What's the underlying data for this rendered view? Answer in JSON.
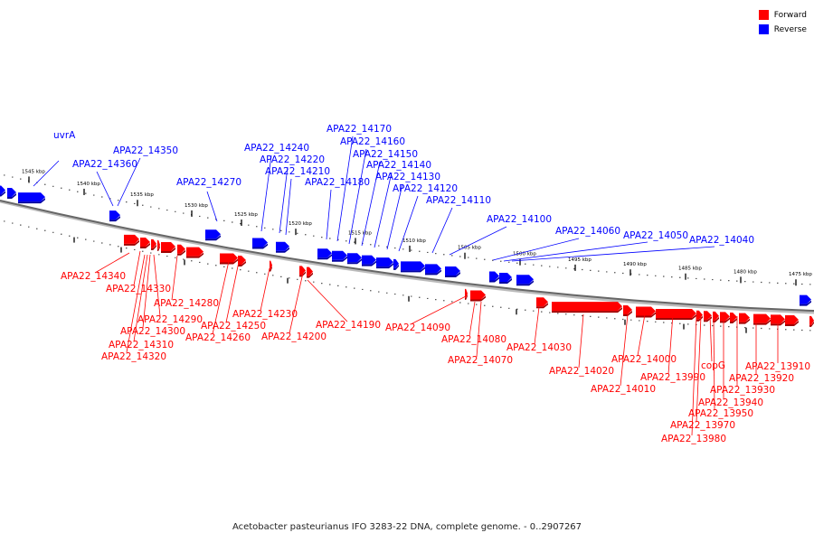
{
  "legend": {
    "forward_label": "Forward",
    "reverse_label": "Reverse",
    "forward_color": "#ff0000",
    "reverse_color": "#0000ff"
  },
  "caption": "Acetobacter pasteurianus IFO 3283-22 DNA, complete genome. - 0..2907267",
  "ticks": [
    "1545 kbp",
    "1540 kbp",
    "1535 kbp",
    "1530 kbp",
    "1525 kbp",
    "1520 kbp",
    "1515 kbp",
    "1510 kbp",
    "1505 kbp",
    "1500 kbp",
    "1495 kbp",
    "1490 kbp",
    "1485 kbp",
    "1480 kbp",
    "1475 kbp"
  ],
  "reverse_genes": [
    "uvrA",
    "APA22_14360",
    "APA22_14350",
    "APA22_14270",
    "APA22_14240",
    "APA22_14220",
    "APA22_14210",
    "APA22_14180",
    "APA22_14170",
    "APA22_14160",
    "APA22_14150",
    "APA22_14140",
    "APA22_14130",
    "APA22_14120",
    "APA22_14110",
    "APA22_14100",
    "APA22_14060",
    "APA22_14050",
    "APA22_14040"
  ],
  "forward_genes": [
    "APA22_14340",
    "APA22_14330",
    "APA22_14320",
    "APA22_14310",
    "APA22_14300",
    "APA22_14290",
    "APA22_14280",
    "APA22_14260",
    "APA22_14250",
    "APA22_14230",
    "APA22_14200",
    "APA22_14190",
    "APA22_14090",
    "APA22_14080",
    "APA22_14070",
    "APA22_14030",
    "APA22_14020",
    "APA22_14010",
    "APA22_14000",
    "APA22_13990",
    "copG",
    "APA22_13980",
    "APA22_13970",
    "APA22_13950",
    "APA22_13940",
    "APA22_13930",
    "APA22_13920",
    "APA22_13910"
  ]
}
